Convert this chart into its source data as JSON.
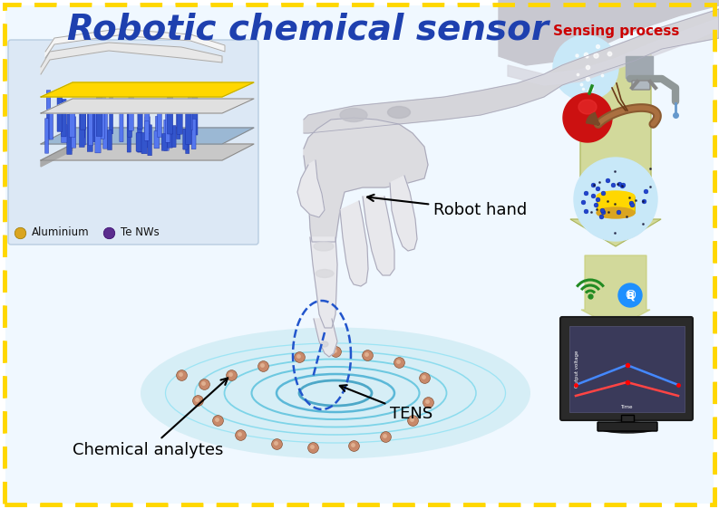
{
  "title": "Robotic chemical sensor",
  "title_color": "#1E40AF",
  "title_fontsize": 28,
  "bg_color": "#EBF5FB",
  "border_color": "#FFD700",
  "sensing_process_label": "Sensing process",
  "sensing_process_color": "#CC0000",
  "robot_hand_label": "Robot hand",
  "tens_label": "TENS",
  "chemical_analytes_label": "Chemical analytes",
  "aluminium_label": "Aluminium",
  "te_nws_label": "Te NWs",
  "aluminium_color": "#DAA520",
  "te_nws_color": "#5B2D8E",
  "analyte_color": "#C8956C",
  "dashed_line_color": "#4169E1",
  "layer_yellow": "#FFD700",
  "layer_blue": "#4169E1",
  "arrow_olive": "#C8D47A",
  "water_blue": "#87CEEB"
}
